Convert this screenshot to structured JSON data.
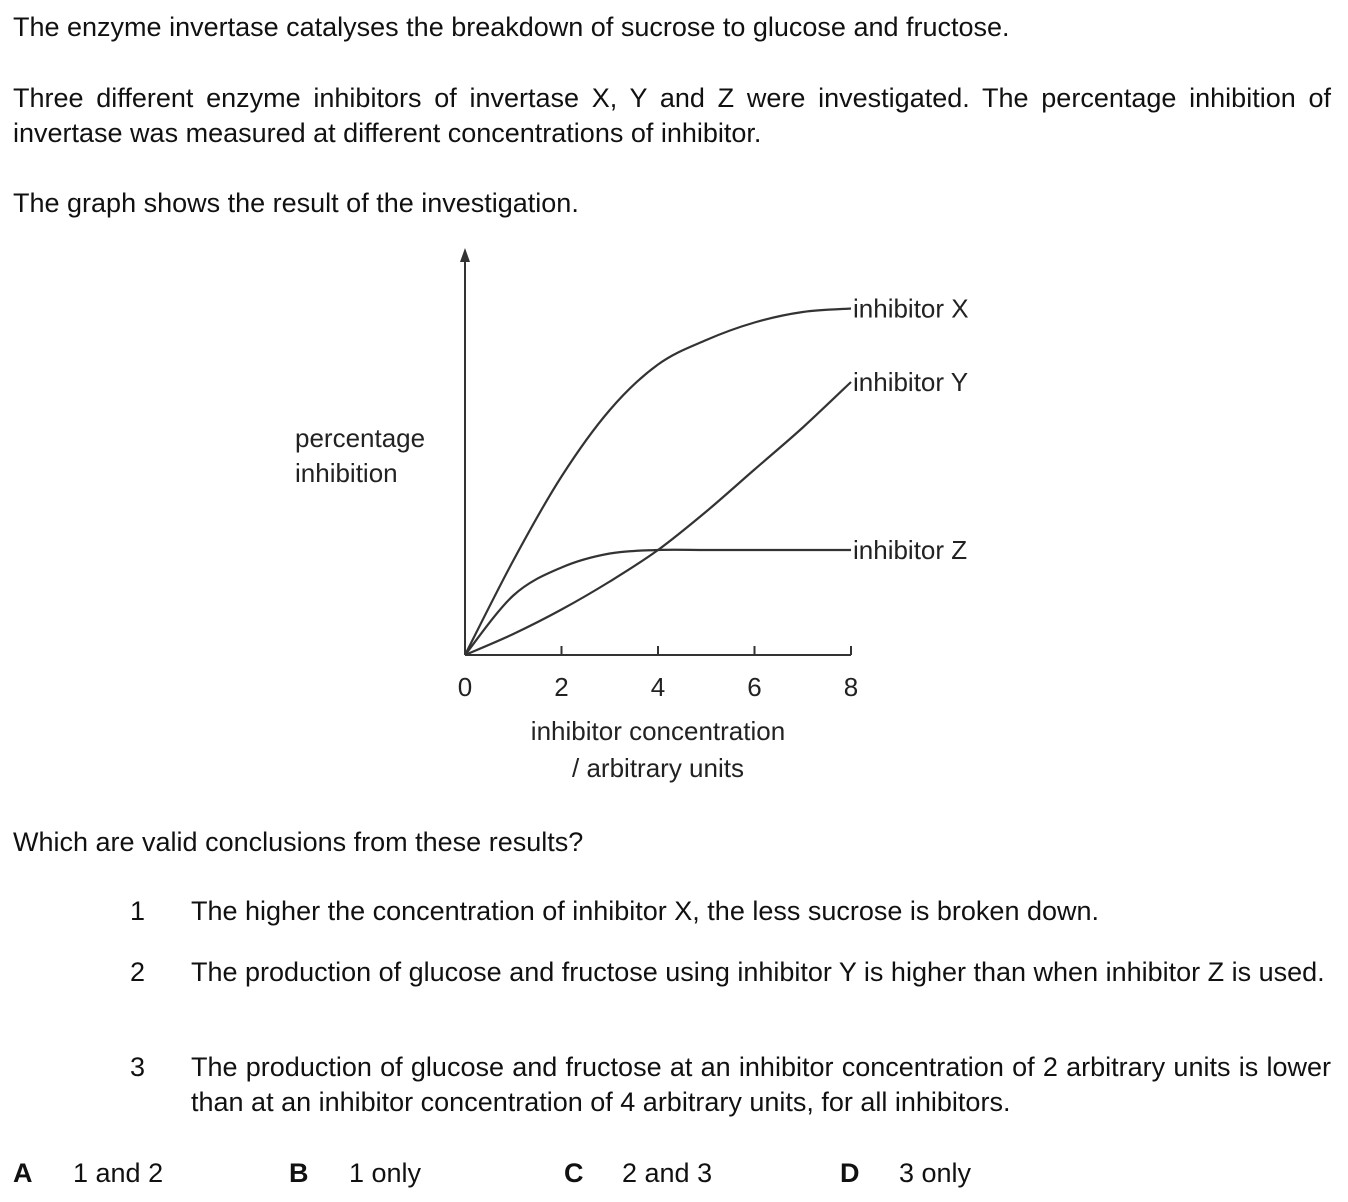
{
  "intro": {
    "p1": "The enzyme invertase catalyses the breakdown of sucrose to glucose and fructose.",
    "p2": "Three different enzyme inhibitors of invertase X, Y and Z were investigated. The percentage inhibition of invertase was measured at different concentrations of inhibitor.",
    "p3": "The graph shows the result of the investigation."
  },
  "chart_data": {
    "type": "line",
    "ylabel": [
      "percentage",
      "inhibition"
    ],
    "xlabel": [
      "inhibitor concentration",
      "/ arbitrary units"
    ],
    "xticks": [
      "0",
      "2",
      "4",
      "6",
      "8"
    ],
    "xlim": [
      0,
      8
    ],
    "ylim": [
      0,
      100
    ],
    "grid": false,
    "legend": "labels at right end of each line",
    "series": [
      {
        "name": "inhibitor X",
        "x": [
          0,
          1,
          2,
          3,
          4,
          5,
          6,
          7,
          8
        ],
        "y": [
          0,
          27,
          51,
          70,
          83,
          90,
          95,
          98,
          99
        ]
      },
      {
        "name": "inhibitor Y",
        "x": [
          0,
          1,
          2,
          3,
          4,
          5,
          6,
          7,
          8
        ],
        "y": [
          0,
          6,
          13,
          21,
          30,
          41,
          53,
          65,
          78
        ]
      },
      {
        "name": "inhibitor Z",
        "x": [
          0,
          1,
          2,
          3,
          4,
          5,
          6,
          7,
          8
        ],
        "y": [
          0,
          17,
          25,
          29,
          30,
          30,
          30,
          30,
          30
        ]
      }
    ]
  },
  "question": "Which are valid conclusions from these results?",
  "statements": [
    {
      "num": "1",
      "text": "The higher the concentration of inhibitor X, the less sucrose is broken down."
    },
    {
      "num": "2",
      "text": "The production of glucose and fructose using inhibitor Y is higher than when inhibitor Z is used."
    },
    {
      "num": "3",
      "text": "The production of glucose and fructose at an inhibitor concentration of 2 arbitrary units is lower than at an inhibitor concentration of 4 arbitrary units, for all inhibitors."
    }
  ],
  "options": [
    {
      "letter": "A",
      "text": "1 and 2"
    },
    {
      "letter": "B",
      "text": "1 only"
    },
    {
      "letter": "C",
      "text": "2 and 3"
    },
    {
      "letter": "D",
      "text": "3 only"
    }
  ],
  "colors": {
    "ink": "#111111",
    "line": "#333333"
  }
}
